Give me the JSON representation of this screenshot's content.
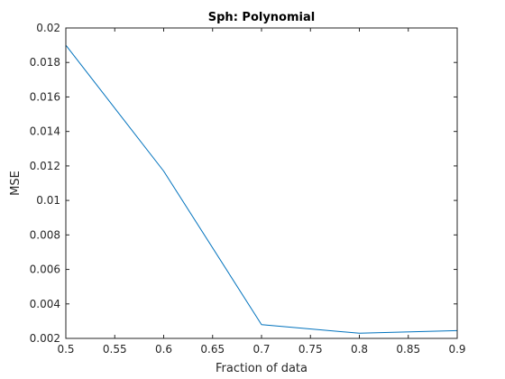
{
  "chart_data": {
    "type": "line",
    "title": "Sph: Polynomial",
    "xlabel": "Fraction of data",
    "ylabel": "MSE",
    "xlim": [
      0.5,
      0.9
    ],
    "ylim": [
      0.002,
      0.02
    ],
    "xticks": [
      "0.5",
      "0.55",
      "0.6",
      "0.65",
      "0.7",
      "0.75",
      "0.8",
      "0.85",
      "0.9"
    ],
    "yticks": [
      "0.002",
      "0.004",
      "0.006",
      "0.008",
      "0.01",
      "0.012",
      "0.014",
      "0.016",
      "0.018",
      "0.02"
    ],
    "grid": false,
    "box": true,
    "series": [
      {
        "color": "#0072bd",
        "x": [
          0.5,
          0.6,
          0.7,
          0.8,
          0.9
        ],
        "y": [
          0.019,
          0.0117,
          0.0028,
          0.0023,
          0.00245
        ]
      }
    ]
  }
}
